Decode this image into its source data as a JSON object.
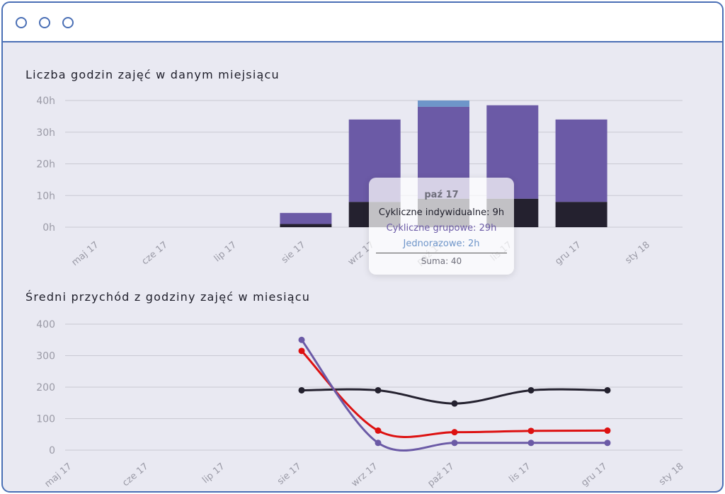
{
  "window": {
    "controls": [
      "window-control-1",
      "window-control-2",
      "window-control-3"
    ]
  },
  "colors": {
    "frame": "#4a6fb5",
    "dark": "#24212f",
    "purple": "#6b5aa6",
    "light_blue": "#6e95c9",
    "red": "#dd1111",
    "grid": "#c9c9d3",
    "axis_text": "#9a9aa6"
  },
  "chart_data": [
    {
      "type": "bar",
      "stacked": true,
      "title": "Liczba godzin zajęć w danym miejsiącu",
      "categories": [
        "maj 17",
        "cze 17",
        "lip 17",
        "sie 17",
        "wrz 17",
        "paź 17",
        "lis 17",
        "gru 17",
        "sty 18"
      ],
      "y_ticks": [
        "0h",
        "10h",
        "20h",
        "30h",
        "40h"
      ],
      "ylim": [
        0,
        40
      ],
      "grid": true,
      "series": [
        {
          "name": "Cykliczne indywidualne",
          "color": "#24212f",
          "values": [
            0,
            0,
            0,
            1,
            8,
            9,
            9,
            8,
            0
          ]
        },
        {
          "name": "Cykliczne grupowe",
          "color": "#6b5aa6",
          "values": [
            0,
            0,
            0,
            3.5,
            26,
            29,
            29.5,
            26,
            0
          ]
        },
        {
          "name": "Jednorazowe",
          "color": "#6e95c9",
          "values": [
            0,
            0,
            0,
            0,
            0,
            2,
            0,
            0,
            0
          ]
        }
      ],
      "tooltip": {
        "title": "paź 17",
        "lines": [
          {
            "text": "Cykliczne indywidualne: 9h",
            "color": "#1e1e2a"
          },
          {
            "text": "Cykliczne grupowe: 29h",
            "color": "#6b5aa6"
          },
          {
            "text": "Jednorazowe: 2h",
            "color": "#6e95c9"
          }
        ],
        "total": "Suma: 40"
      }
    },
    {
      "type": "line",
      "title": "Średni przychód z godziny zajęć w miesiącu",
      "categories": [
        "maj 17",
        "cze 17",
        "lip 17",
        "sie 17",
        "wrz 17",
        "paź 17",
        "lis 17",
        "gru 17",
        "sty 18"
      ],
      "y_ticks": [
        "0",
        "100",
        "200",
        "300",
        "400"
      ],
      "ylim": [
        0,
        400
      ],
      "grid": true,
      "series": [
        {
          "color": "#24212f",
          "values": [
            null,
            null,
            null,
            190,
            190,
            148,
            190,
            190,
            null
          ]
        },
        {
          "color": "#dd1111",
          "values": [
            null,
            null,
            null,
            315,
            62,
            57,
            61,
            62,
            null
          ]
        },
        {
          "color": "#6b5aa6",
          "values": [
            null,
            null,
            null,
            350,
            23,
            23,
            23,
            23,
            null
          ]
        }
      ]
    }
  ]
}
